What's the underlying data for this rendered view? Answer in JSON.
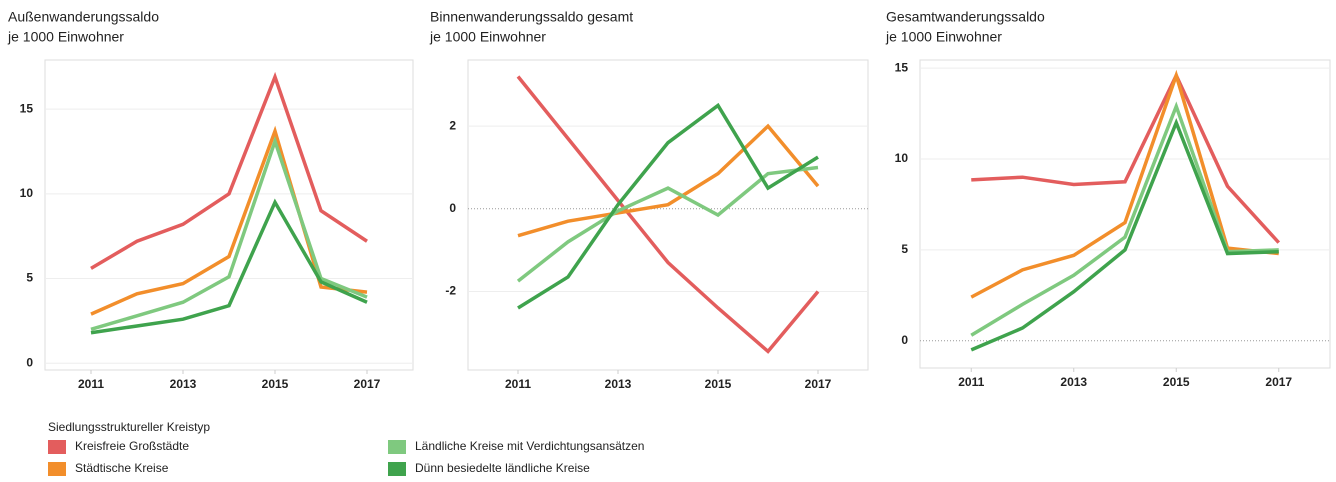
{
  "legend_title": "Siedlungsstruktureller Kreistyp",
  "chart_data": [
    {
      "type": "line",
      "title": "Außenwanderungssaldo",
      "subtitle": "je 1000 Einwohner",
      "x": [
        2011,
        2012,
        2013,
        2014,
        2015,
        2016,
        2017
      ],
      "xlim": [
        2010,
        2018
      ],
      "xticks": [
        2011,
        2013,
        2015,
        2017
      ],
      "ylim": [
        -0.4,
        17.9
      ],
      "yticks": [
        0,
        5,
        10,
        15
      ],
      "grid": true,
      "zero_line": false,
      "series": [
        {
          "name": "Kreisfreie Großstädte",
          "color": "#e35d5d",
          "values": [
            5.6,
            7.2,
            8.2,
            10.0,
            16.9,
            9.0,
            7.2
          ]
        },
        {
          "name": "Städtische Kreise",
          "color": "#f28e2b",
          "values": [
            2.9,
            4.1,
            4.7,
            6.3,
            13.7,
            4.5,
            4.2
          ]
        },
        {
          "name": "Ländliche Kreise mit Verdichtungsansätzen",
          "color": "#7fc97f",
          "values": [
            2.0,
            2.8,
            3.6,
            5.1,
            13.1,
            5.0,
            3.9
          ]
        },
        {
          "name": "Dünn besiedelte ländliche Kreise",
          "color": "#3fa34d",
          "values": [
            1.8,
            2.2,
            2.6,
            3.4,
            9.5,
            4.8,
            3.6
          ]
        }
      ]
    },
    {
      "type": "line",
      "title": "Binnenwanderungssaldo gesamt",
      "subtitle": "je 1000 Einwohner",
      "x": [
        2011,
        2012,
        2013,
        2014,
        2015,
        2016,
        2017
      ],
      "xlim": [
        2010,
        2018
      ],
      "xticks": [
        2011,
        2013,
        2015,
        2017
      ],
      "ylim": [
        -3.9,
        3.6
      ],
      "yticks": [
        -2,
        0,
        2
      ],
      "grid": true,
      "zero_line": true,
      "series": [
        {
          "name": "Kreisfreie Großstädte",
          "color": "#e35d5d",
          "values": [
            3.2,
            1.7,
            0.2,
            -1.3,
            -2.4,
            -3.45,
            -2.0
          ]
        },
        {
          "name": "Städtische Kreise",
          "color": "#f28e2b",
          "values": [
            -0.65,
            -0.3,
            -0.1,
            0.1,
            0.85,
            2.0,
            0.55
          ]
        },
        {
          "name": "Ländliche Kreise mit Verdichtungsansätzen",
          "color": "#7fc97f",
          "values": [
            -1.75,
            -0.8,
            -0.05,
            0.5,
            -0.15,
            0.85,
            1.0
          ]
        },
        {
          "name": "Dünn besiedelte ländliche Kreise",
          "color": "#3fa34d",
          "values": [
            -2.4,
            -1.65,
            0.1,
            1.6,
            2.5,
            0.5,
            1.25
          ]
        }
      ]
    },
    {
      "type": "line",
      "title": "Gesamtwanderungssaldo",
      "subtitle": "je 1000 Einwohner",
      "x": [
        2011,
        2012,
        2013,
        2014,
        2015,
        2016,
        2017
      ],
      "xlim": [
        2010,
        2018
      ],
      "xticks": [
        2011,
        2013,
        2015,
        2017
      ],
      "ylim": [
        -1.5,
        15.45
      ],
      "yticks": [
        0,
        5,
        10,
        15
      ],
      "grid": true,
      "zero_line": true,
      "series": [
        {
          "name": "Kreisfreie Großstädte",
          "color": "#e35d5d",
          "values": [
            8.85,
            9.0,
            8.6,
            8.75,
            14.6,
            8.5,
            5.4
          ]
        },
        {
          "name": "Städtische Kreise",
          "color": "#f28e2b",
          "values": [
            2.4,
            3.9,
            4.7,
            6.5,
            14.6,
            5.1,
            4.8
          ]
        },
        {
          "name": "Ländliche Kreise mit Verdichtungsansätzen",
          "color": "#7fc97f",
          "values": [
            0.3,
            2.0,
            3.6,
            5.7,
            12.9,
            4.9,
            5.0
          ]
        },
        {
          "name": "Dünn besiedelte ländliche Kreise",
          "color": "#3fa34d",
          "values": [
            -0.5,
            0.7,
            2.7,
            5.0,
            12.0,
            4.8,
            4.9
          ]
        }
      ]
    }
  ]
}
